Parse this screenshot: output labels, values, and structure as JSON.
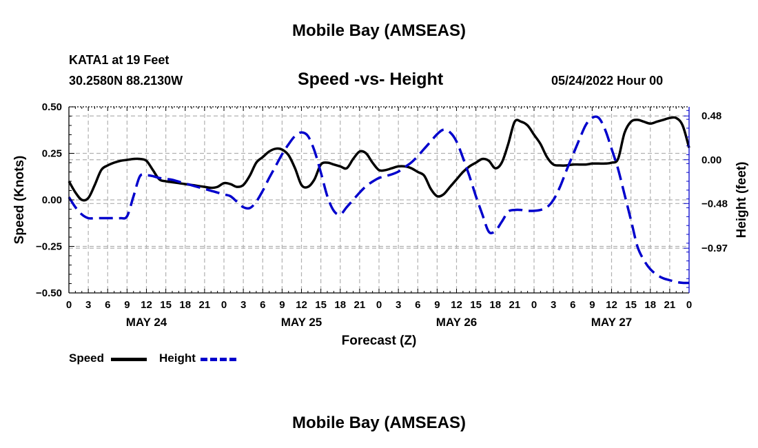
{
  "header": {
    "title_top": "Mobile Bay (AMSEAS)",
    "title_bottom": "Mobile Bay (AMSEAS)",
    "station": "KATA1 at 19 Feet",
    "coords": "30.2580N  88.2130W",
    "date": "05/24/2022 Hour 00"
  },
  "chart_data": {
    "type": "line",
    "title": "Speed -vs- Height",
    "xlabel": "Forecast (Z)",
    "ylabel": "Speed (Knots)",
    "y2label": "Height (feet)",
    "x_range_hours": [
      0,
      96
    ],
    "ylim": [
      -0.5,
      0.5
    ],
    "y2lim": [
      -1.46,
      0.58
    ],
    "yticks": [
      -0.5,
      -0.25,
      0.0,
      0.25,
      0.5
    ],
    "ytick_labels": [
      "−0.50",
      "−0.25",
      "0.00",
      "0.25",
      "0.50"
    ],
    "y2ticks": [
      -0.97,
      -0.48,
      0.0,
      0.48
    ],
    "y2tick_labels": [
      "−0.97",
      "−0.48",
      "0.00",
      "0.48"
    ],
    "xtick_step_hours": 3,
    "xtick_labels": [
      "0",
      "3",
      "6",
      "9",
      "12",
      "15",
      "18",
      "21",
      "0",
      "3",
      "6",
      "9",
      "12",
      "15",
      "18",
      "21",
      "0",
      "3",
      "6",
      "9",
      "12",
      "15",
      "18",
      "21",
      "0",
      "3",
      "6",
      "9",
      "12",
      "15",
      "18",
      "21",
      "0"
    ],
    "day_labels": [
      {
        "text": "MAY 24",
        "hour": 12
      },
      {
        "text": "MAY 25",
        "hour": 36
      },
      {
        "text": "MAY 26",
        "hour": 60
      },
      {
        "text": "MAY 27",
        "hour": 84
      }
    ],
    "grid": true,
    "legend_position": "bottom-left",
    "series": [
      {
        "name": "Speed",
        "axis": "left",
        "color": "#000000",
        "dash": "solid",
        "x": [
          0,
          1,
          2,
          3,
          4,
          5,
          6,
          7,
          8,
          9,
          10,
          11,
          12,
          13,
          14,
          15,
          16,
          17,
          18,
          19,
          20,
          21,
          22,
          23,
          24,
          25,
          26,
          27,
          28,
          29,
          30,
          31,
          32,
          33,
          34,
          35,
          36,
          37,
          38,
          39,
          40,
          41,
          42,
          43,
          44,
          45,
          46,
          47,
          48,
          49,
          50,
          51,
          52,
          53,
          54,
          55,
          56,
          57,
          58,
          59,
          60,
          61,
          62,
          63,
          64,
          65,
          66,
          67,
          68,
          69,
          70,
          71,
          72,
          73,
          74,
          75,
          76,
          77,
          78,
          79,
          80,
          81,
          82,
          83,
          84,
          85,
          86,
          87,
          88,
          89,
          90,
          91,
          92,
          93,
          94,
          95,
          96
        ],
        "values": [
          0.1,
          0.04,
          0.0,
          0.01,
          0.08,
          0.16,
          0.185,
          0.2,
          0.21,
          0.215,
          0.22,
          0.22,
          0.21,
          0.16,
          0.11,
          0.1,
          0.095,
          0.09,
          0.085,
          0.08,
          0.075,
          0.07,
          0.065,
          0.07,
          0.09,
          0.085,
          0.07,
          0.08,
          0.13,
          0.2,
          0.23,
          0.26,
          0.275,
          0.27,
          0.24,
          0.17,
          0.08,
          0.07,
          0.11,
          0.19,
          0.2,
          0.19,
          0.18,
          0.17,
          0.22,
          0.26,
          0.25,
          0.2,
          0.16,
          0.16,
          0.17,
          0.18,
          0.18,
          0.17,
          0.15,
          0.13,
          0.06,
          0.02,
          0.03,
          0.07,
          0.11,
          0.15,
          0.18,
          0.2,
          0.22,
          0.21,
          0.17,
          0.2,
          0.3,
          0.42,
          0.42,
          0.4,
          0.35,
          0.3,
          0.23,
          0.19,
          0.185,
          0.185,
          0.19,
          0.19,
          0.19,
          0.195,
          0.195,
          0.195,
          0.2,
          0.22,
          0.36,
          0.42,
          0.43,
          0.42,
          0.41,
          0.42,
          0.43,
          0.44,
          0.44,
          0.4,
          0.28
        ]
      },
      {
        "name": "Height",
        "axis": "right",
        "color": "#0000cc",
        "dash": "dashed",
        "x": [
          0,
          1,
          2,
          3,
          4,
          5,
          6,
          7,
          8,
          9,
          10,
          11,
          12,
          13,
          14,
          15,
          16,
          17,
          18,
          19,
          20,
          21,
          22,
          23,
          24,
          25,
          26,
          27,
          28,
          29,
          30,
          31,
          32,
          33,
          34,
          35,
          36,
          37,
          38,
          39,
          40,
          41,
          42,
          43,
          44,
          45,
          46,
          47,
          48,
          49,
          50,
          51,
          52,
          53,
          54,
          55,
          56,
          57,
          58,
          59,
          60,
          61,
          62,
          63,
          64,
          65,
          66,
          67,
          68,
          69,
          70,
          71,
          72,
          73,
          74,
          75,
          76,
          77,
          78,
          79,
          80,
          81,
          82,
          83,
          84,
          85,
          86,
          87,
          88,
          89,
          90,
          91,
          92,
          93,
          94,
          95,
          96
        ],
        "values": [
          -0.41,
          -0.52,
          -0.6,
          -0.64,
          -0.64,
          -0.64,
          -0.64,
          -0.64,
          -0.64,
          -0.62,
          -0.4,
          -0.18,
          -0.17,
          -0.18,
          -0.2,
          -0.21,
          -0.22,
          -0.24,
          -0.26,
          -0.28,
          -0.3,
          -0.32,
          -0.34,
          -0.36,
          -0.38,
          -0.4,
          -0.46,
          -0.52,
          -0.53,
          -0.46,
          -0.34,
          -0.2,
          -0.07,
          0.06,
          0.17,
          0.26,
          0.3,
          0.26,
          0.1,
          -0.14,
          -0.4,
          -0.56,
          -0.6,
          -0.52,
          -0.44,
          -0.36,
          -0.29,
          -0.24,
          -0.2,
          -0.18,
          -0.16,
          -0.13,
          -0.08,
          -0.03,
          0.04,
          0.12,
          0.2,
          0.28,
          0.33,
          0.3,
          0.2,
          0.02,
          -0.18,
          -0.4,
          -0.6,
          -0.79,
          -0.78,
          -0.68,
          -0.57,
          -0.55,
          -0.55,
          -0.56,
          -0.56,
          -0.55,
          -0.52,
          -0.44,
          -0.3,
          -0.12,
          0.05,
          0.22,
          0.38,
          0.46,
          0.46,
          0.33,
          0.12,
          -0.1,
          -0.38,
          -0.66,
          -0.95,
          -1.1,
          -1.2,
          -1.26,
          -1.3,
          -1.32,
          -1.34,
          -1.35,
          -1.35
        ]
      }
    ]
  }
}
